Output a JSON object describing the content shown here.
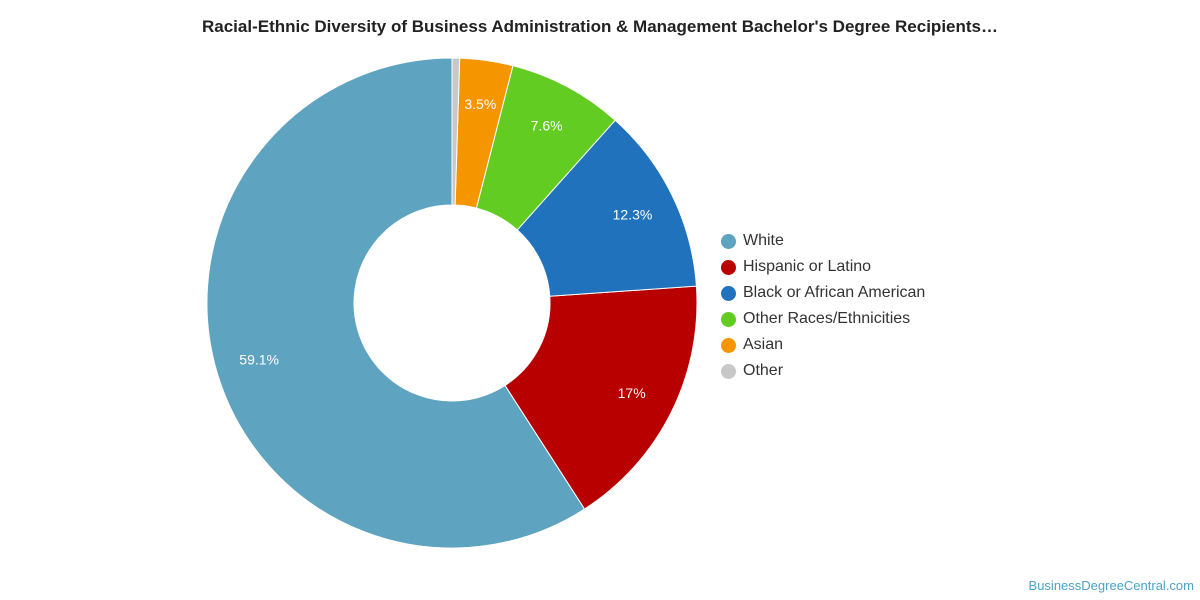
{
  "chart_data": {
    "type": "pie",
    "title": "Racial-Ethnic Diversity of Business Administration & Management Bachelor's Degree Recipients…",
    "donut": true,
    "legend_position": "right",
    "slices": [
      {
        "label": "White",
        "value": 59.1,
        "display": "59.1%",
        "color": "#5ea3c0"
      },
      {
        "label": "Hispanic or Latino",
        "value": 17.0,
        "display": "17%",
        "color": "#b90000"
      },
      {
        "label": "Black or African American",
        "value": 12.3,
        "display": "12.3%",
        "color": "#1f72bb"
      },
      {
        "label": "Other Races/Ethnicities",
        "value": 7.6,
        "display": "7.6%",
        "color": "#62cc22"
      },
      {
        "label": "Asian",
        "value": 3.5,
        "display": "3.5%",
        "color": "#f59500"
      },
      {
        "label": "Other",
        "value": 0.5,
        "display": "",
        "color": "#c8c8c8"
      }
    ]
  },
  "source": "BusinessDegreeCentral.com"
}
